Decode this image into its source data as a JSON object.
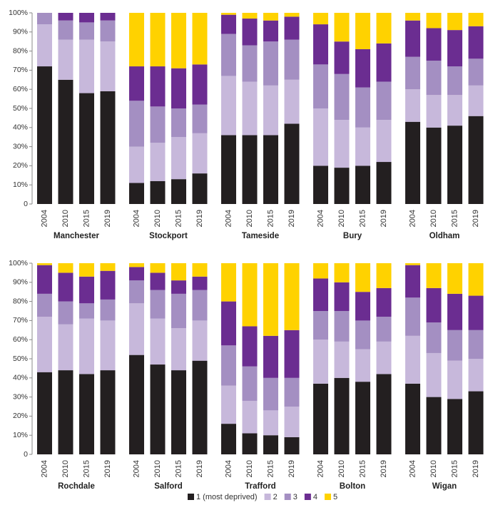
{
  "chart_data": {
    "type": "stacked_bar",
    "ylim": [
      0,
      100
    ],
    "yticks": [
      0,
      {
        "value": 10,
        "label": "10%"
      },
      {
        "value": 20,
        "label": "20%"
      },
      {
        "value": 30,
        "label": "30%"
      },
      {
        "value": 40,
        "label": "40%"
      },
      {
        "value": 50,
        "label": "50%"
      },
      {
        "value": 60,
        "label": "60%"
      },
      {
        "value": 70,
        "label": "70%"
      },
      {
        "value": 80,
        "label": "80%"
      },
      {
        "value": 90,
        "label": "90%"
      },
      {
        "value": 100,
        "label": "100%"
      }
    ],
    "categories": [
      "2004",
      "2010",
      "2015",
      "2019"
    ],
    "groups": [
      "Manchester",
      "Stockport",
      "Tameside",
      "Bury",
      "Oldham",
      "Rochdale",
      "Salford",
      "Trafford",
      "Bolton",
      "Wigan"
    ],
    "series": [
      {
        "name": "1 (most deprived)",
        "color": "#231f20",
        "values": [
          [
            72,
            65,
            58,
            59
          ],
          [
            11,
            12,
            13,
            16
          ],
          [
            36,
            36,
            36,
            42
          ],
          [
            20,
            19,
            20,
            22
          ],
          [
            43,
            40,
            41,
            46
          ],
          [
            43,
            44,
            42,
            44
          ],
          [
            52,
            47,
            44,
            49
          ],
          [
            16,
            11,
            10,
            9
          ],
          [
            37,
            40,
            38,
            42
          ],
          [
            37,
            30,
            29,
            33
          ]
        ]
      },
      {
        "name": "2",
        "color": "#c7b8db",
        "values": [
          [
            22,
            21,
            28,
            26
          ],
          [
            19,
            20,
            22,
            21
          ],
          [
            31,
            28,
            26,
            23
          ],
          [
            30,
            25,
            20,
            22
          ],
          [
            17,
            17,
            16,
            16
          ],
          [
            29,
            24,
            29,
            26
          ],
          [
            27,
            24,
            22,
            21
          ],
          [
            20,
            17,
            13,
            16
          ],
          [
            23,
            19,
            17,
            17
          ],
          [
            25,
            23,
            20,
            17
          ]
        ]
      },
      {
        "name": "3",
        "color": "#a48fc2",
        "values": [
          [
            6,
            10,
            9,
            11
          ],
          [
            24,
            19,
            15,
            15
          ],
          [
            22,
            19,
            23,
            21
          ],
          [
            23,
            24,
            21,
            20
          ],
          [
            17,
            18,
            15,
            14
          ],
          [
            12,
            12,
            8,
            11
          ],
          [
            12,
            15,
            18,
            16
          ],
          [
            21,
            18,
            17,
            15
          ],
          [
            15,
            16,
            15,
            13
          ],
          [
            20,
            16,
            16,
            15
          ]
        ]
      },
      {
        "name": "4",
        "color": "#6b2d91",
        "values": [
          [
            0,
            4,
            5,
            4
          ],
          [
            18,
            21,
            21,
            21
          ],
          [
            10,
            14,
            11,
            12
          ],
          [
            21,
            17,
            20,
            20
          ],
          [
            19,
            17,
            19,
            17
          ],
          [
            15,
            15,
            14,
            15
          ],
          [
            7,
            9,
            7,
            7
          ],
          [
            23,
            21,
            22,
            25
          ],
          [
            17,
            15,
            15,
            15
          ],
          [
            17,
            18,
            19,
            18
          ]
        ]
      },
      {
        "name": "5",
        "color": "#ffd200",
        "values": [
          [
            0,
            0,
            0,
            0
          ],
          [
            28,
            28,
            29,
            27
          ],
          [
            1,
            3,
            4,
            2
          ],
          [
            6,
            15,
            19,
            16
          ],
          [
            4,
            8,
            9,
            7
          ],
          [
            1,
            5,
            7,
            4
          ],
          [
            2,
            5,
            9,
            7
          ],
          [
            20,
            33,
            38,
            35
          ],
          [
            8,
            10,
            15,
            13
          ],
          [
            1,
            13,
            16,
            17
          ]
        ]
      }
    ]
  }
}
